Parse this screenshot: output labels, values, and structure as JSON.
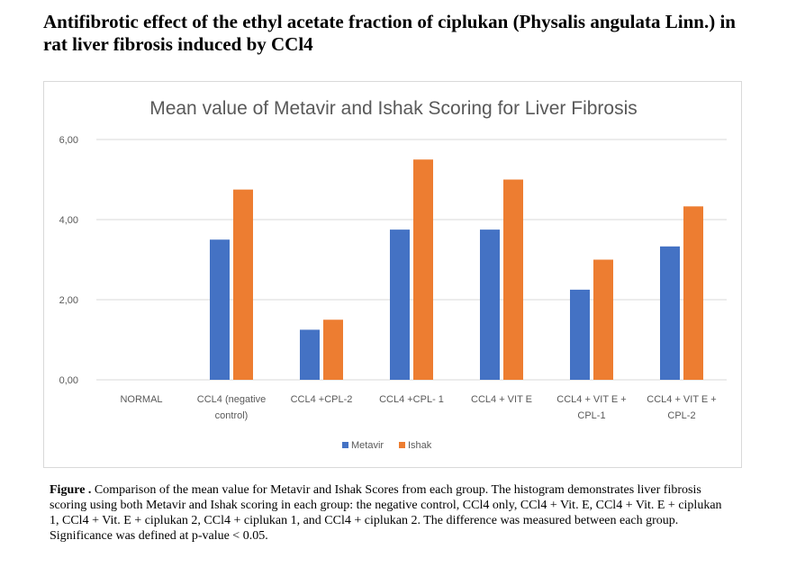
{
  "page": {
    "title": "Antifibrotic effect of the ethyl acetate fraction of ciplukan (Physalis angulata Linn.) in rat liver fibrosis induced by CCl4",
    "caption_label": "Figure .",
    "caption_text": " Comparison of the mean value for Metavir and Ishak Scores from each group. The histogram demonstrates liver fibrosis scoring using both Metavir and Ishak scoring in each group: the  negative control, CCl4  only, CCl4  + Vit. E, CCl4  + Vit. E + ciplukan 1, CCl4  + Vit. E + ciplukan 2, CCl4  + ciplukan 1, and CCl4  + ciplukan 2. The difference was measured between each group. Significance was defined at p-value < 0.05."
  },
  "chart_data": {
    "type": "bar",
    "title": "Mean value of Metavir and Ishak Scoring for Liver Fibrosis",
    "xlabel": "",
    "ylabel": "",
    "ylim": [
      0,
      6
    ],
    "yticks": [
      "0,00",
      "2,00",
      "4,00",
      "6,00"
    ],
    "grid": true,
    "legend_position": "bottom",
    "categories": [
      [
        "NORMAL"
      ],
      [
        "CCL4 (negative",
        "control)"
      ],
      [
        "CCL4 +CPL-2"
      ],
      [
        "CCL4 +CPL- 1"
      ],
      [
        "CCL4 +  VIT E"
      ],
      [
        "CCL4 +  VIT E +",
        "CPL-1"
      ],
      [
        "CCL4 + VIT E +",
        "CPL-2"
      ]
    ],
    "series": [
      {
        "name": "Metavir",
        "color": "#4472c4",
        "values": [
          0,
          3.5,
          1.25,
          3.75,
          3.75,
          2.25,
          3.33
        ]
      },
      {
        "name": "Ishak",
        "color": "#ed7d31",
        "values": [
          0,
          4.75,
          1.5,
          5.5,
          5.0,
          3.0,
          4.33
        ]
      }
    ]
  }
}
